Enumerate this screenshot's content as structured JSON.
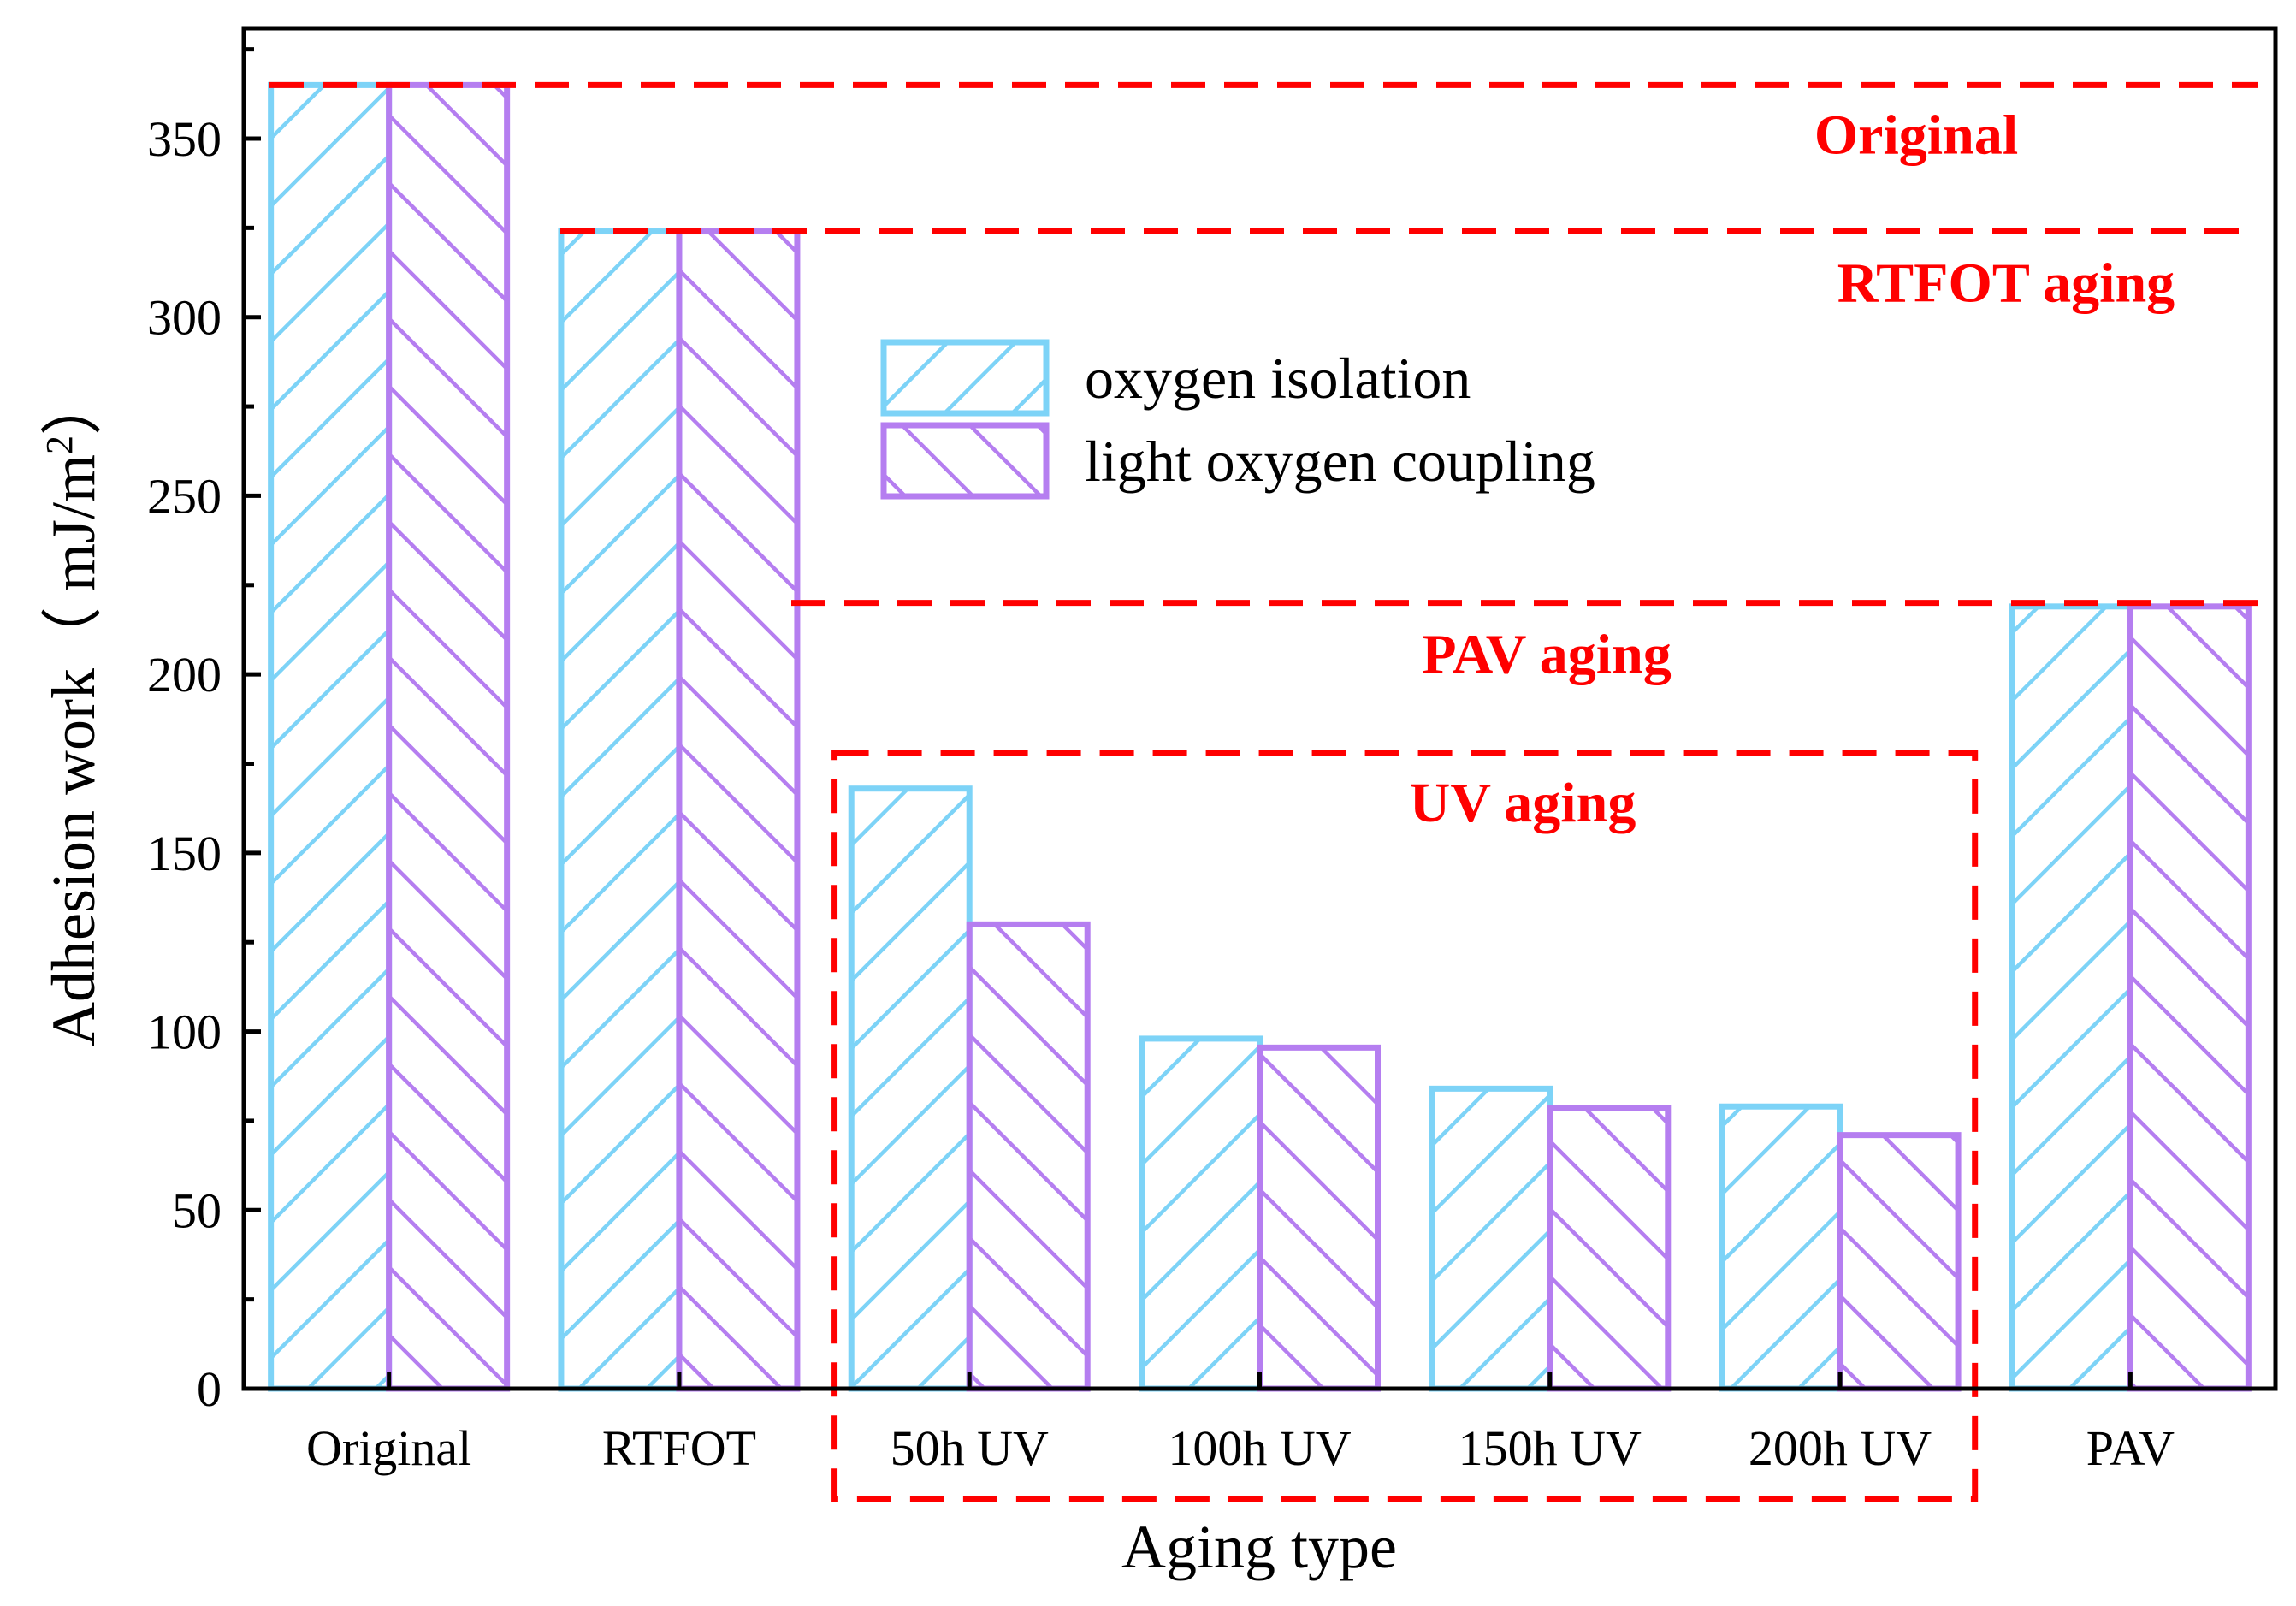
{
  "chart_data": {
    "type": "bar",
    "title": "",
    "xlabel": "Aging type",
    "ylabel": "Adhesion work（ mJ/m",
    "ylabel_sup": "2",
    "ylabel_close": "）",
    "categories": [
      "Original",
      "RTFOT",
      "50h UV",
      "100h UV",
      "150h UV",
      "200h UV",
      "PAV"
    ],
    "series": [
      {
        "name": "oxygen isolation",
        "values": [
          365,
          324,
          168,
          98,
          84,
          79,
          219
        ],
        "color": "#7dd3f7",
        "hatch": "forward"
      },
      {
        "name": "light oxygen coupling",
        "values": [
          365,
          324,
          130,
          95.5,
          78.5,
          71,
          219
        ],
        "color": "#b57ef0",
        "hatch": "backward"
      }
    ],
    "ylim": [
      0,
      380
    ],
    "yticks": [
      0,
      50,
      100,
      150,
      200,
      250,
      300,
      350
    ],
    "grid": false,
    "legend_position": "upper-center",
    "reference_lines": [
      {
        "value": 365,
        "label": "Original"
      },
      {
        "value": 324,
        "label": "RTFOT aging"
      },
      {
        "value": 220,
        "label": "PAV aging"
      }
    ],
    "group_box": {
      "label": "UV aging",
      "categories": [
        "50h UV",
        "100h UV",
        "150h UV",
        "200h UV"
      ],
      "top_value": 178
    },
    "annotation_color": "#ff0000"
  }
}
